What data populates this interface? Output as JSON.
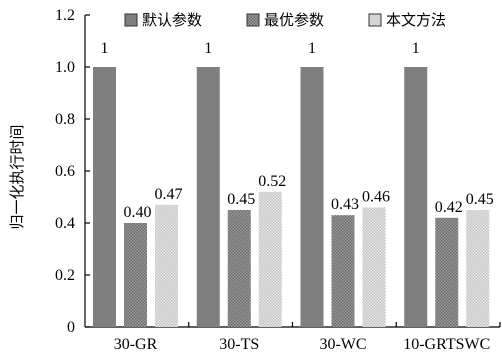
{
  "chart_data": {
    "type": "bar",
    "categories": [
      "30-GR",
      "30-TS",
      "30-WC",
      "10-GRTSWC"
    ],
    "series": [
      {
        "name": "默认参数",
        "values": [
          1,
          1,
          1,
          1
        ],
        "labels": [
          "1",
          "1",
          "1",
          "1"
        ],
        "color": "#7f7f7f",
        "pattern": "solid"
      },
      {
        "name": "最优参数",
        "values": [
          0.4,
          0.45,
          0.43,
          0.42
        ],
        "labels": [
          "0.40",
          "0.45",
          "0.43",
          "0.42"
        ],
        "color": "#8c8c8c",
        "pattern": "dense-dots"
      },
      {
        "name": "本文方法",
        "values": [
          0.47,
          0.52,
          0.46,
          0.45
        ],
        "labels": [
          "0.47",
          "0.52",
          "0.46",
          "0.45"
        ],
        "color": "#d9d9d9",
        "pattern": "light-dots"
      }
    ],
    "xlabel": "",
    "ylabel": "归一化执行时间",
    "ylim": [
      0,
      1.2
    ],
    "yticks": [
      "0",
      "0.2",
      "0.4",
      "0.6",
      "0.8",
      "1.0",
      "1.2"
    ],
    "grid": false,
    "legend": "top"
  }
}
